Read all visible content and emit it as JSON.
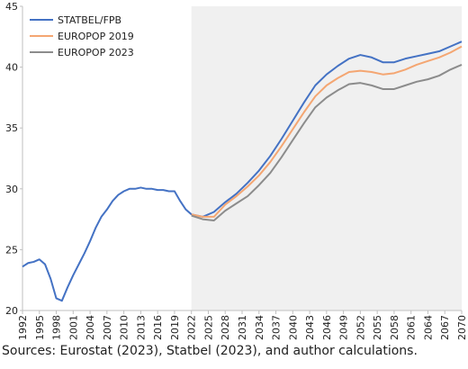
{
  "chart_data": {
    "type": "line",
    "source": "Sources: Eurostat (2023), Statbel (2023), and author calculations.",
    "x": [
      1992,
      1993,
      1994,
      1995,
      1996,
      1997,
      1998,
      1999,
      2000,
      2001,
      2002,
      2003,
      2004,
      2005,
      2006,
      2007,
      2008,
      2009,
      2010,
      2011,
      2012,
      2013,
      2014,
      2015,
      2016,
      2017,
      2018,
      2019,
      2020,
      2021,
      2022,
      2024,
      2026,
      2028,
      2030,
      2032,
      2034,
      2036,
      2038,
      2040,
      2042,
      2044,
      2046,
      2048,
      2050,
      2052,
      2054,
      2056,
      2058,
      2060,
      2062,
      2064,
      2066,
      2068,
      2070
    ],
    "series": [
      {
        "name": "STATBEL/FPB",
        "color": "#4472c4",
        "values": [
          23.6,
          23.9,
          24.0,
          24.2,
          23.8,
          22.6,
          21.0,
          20.8,
          21.9,
          22.9,
          23.8,
          24.7,
          25.7,
          26.8,
          27.7,
          28.3,
          29.0,
          29.5,
          29.8,
          30.0,
          30.0,
          30.1,
          30.0,
          30.0,
          29.9,
          29.9,
          29.8,
          29.8,
          29.0,
          28.3,
          27.9,
          27.7,
          28.1,
          28.9,
          29.6,
          30.5,
          31.5,
          32.7,
          34.1,
          35.6,
          37.1,
          38.5,
          39.4,
          40.1,
          40.7,
          41.0,
          40.8,
          40.4,
          40.4,
          40.7,
          40.9,
          41.1,
          41.3,
          41.7,
          42.1
        ]
      },
      {
        "name": "EUROPOP 2019",
        "color": "#f4a672",
        "values": [
          null,
          null,
          null,
          null,
          null,
          null,
          null,
          null,
          null,
          null,
          null,
          null,
          null,
          null,
          null,
          null,
          null,
          null,
          null,
          null,
          null,
          null,
          null,
          null,
          null,
          null,
          null,
          null,
          null,
          null,
          27.9,
          27.7,
          27.7,
          28.7,
          29.4,
          30.2,
          31.1,
          32.2,
          33.5,
          34.9,
          36.3,
          37.6,
          38.5,
          39.1,
          39.6,
          39.7,
          39.6,
          39.4,
          39.5,
          39.8,
          40.2,
          40.5,
          40.8,
          41.2,
          41.7
        ]
      },
      {
        "name": "EUROPOP 2023",
        "color": "#8c8c8c",
        "values": [
          null,
          null,
          null,
          null,
          null,
          null,
          null,
          null,
          null,
          null,
          null,
          null,
          null,
          null,
          null,
          null,
          null,
          null,
          null,
          null,
          null,
          null,
          null,
          null,
          null,
          null,
          null,
          null,
          null,
          null,
          27.8,
          27.5,
          27.4,
          28.2,
          28.8,
          29.4,
          30.3,
          31.3,
          32.6,
          34.0,
          35.4,
          36.7,
          37.5,
          38.1,
          38.6,
          38.7,
          38.5,
          38.2,
          38.2,
          38.5,
          38.8,
          39.0,
          39.3,
          39.8,
          40.2
        ]
      }
    ],
    "shaded_region": {
      "x": [
        2022,
        2070
      ],
      "color": "#f0f0f0"
    },
    "xlim": [
      1992,
      2070
    ],
    "xticks": [
      1992,
      1995,
      1998,
      2001,
      2004,
      2007,
      2010,
      2013,
      2016,
      2019,
      2022,
      2025,
      2028,
      2031,
      2034,
      2037,
      2040,
      2043,
      2046,
      2049,
      2052,
      2055,
      2058,
      2061,
      2064,
      2067,
      2070
    ],
    "ylim": [
      20,
      45
    ],
    "yticks": [
      20,
      25,
      30,
      35,
      40,
      45
    ],
    "legend": "upper left"
  }
}
